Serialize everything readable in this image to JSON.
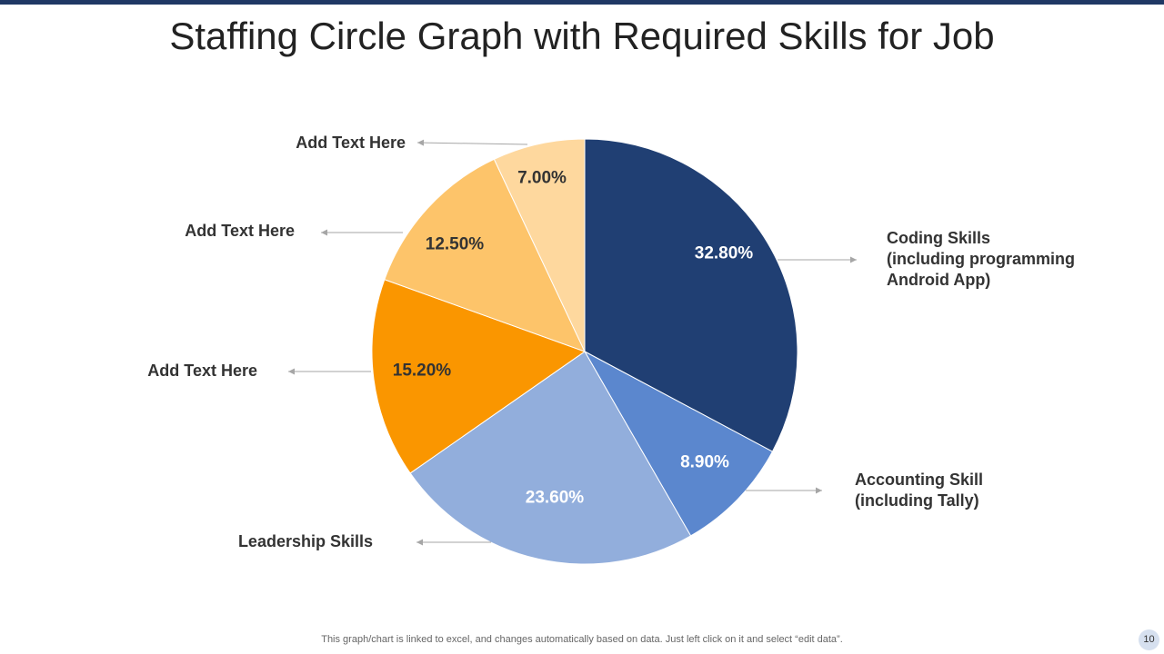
{
  "title": "Staffing Circle Graph with Required Skills for Job",
  "footer_note": "This graph/chart is linked to excel,  and changes automatically based on data. Just left click on it and select “edit data”.",
  "page_number": "10",
  "chart_data": {
    "type": "pie",
    "title": "Staffing Circle Graph with Required Skills for Job",
    "slices": [
      {
        "label": [
          "Coding Skills",
          "(including programming",
          "Android App)"
        ],
        "value": 32.8,
        "display": "32.80%",
        "color": "#203f73",
        "text_color": "#ffffff"
      },
      {
        "label": [
          "Accounting Skill",
          "(including Tally)"
        ],
        "value": 8.9,
        "display": "8.90%",
        "color": "#5b87ce",
        "text_color": "#ffffff"
      },
      {
        "label": [
          "Leadership Skills"
        ],
        "value": 23.6,
        "display": "23.60%",
        "color": "#92aedc",
        "text_color": "#ffffff"
      },
      {
        "label": [
          "Add Text Here"
        ],
        "value": 15.2,
        "display": "15.20%",
        "color": "#fa9600",
        "text_color": "#333333"
      },
      {
        "label": [
          "Add Text Here"
        ],
        "value": 12.5,
        "display": "12.50%",
        "color": "#fdc46a",
        "text_color": "#333333"
      },
      {
        "label": [
          "Add Text Here"
        ],
        "value": 7.0,
        "display": "7.00%",
        "color": "#fed89e",
        "text_color": "#333333"
      }
    ]
  }
}
